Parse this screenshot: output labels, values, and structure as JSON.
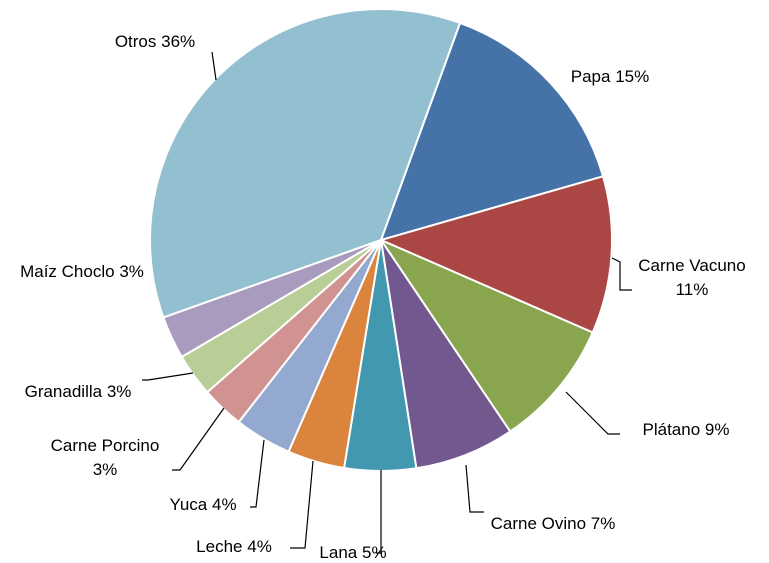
{
  "chart_data": {
    "type": "pie",
    "categories": [
      "Papa",
      "Carne Vacuno",
      "Plátano",
      "Carne Ovino",
      "Lana",
      "Leche",
      "Yuca",
      "Carne Porcino",
      "Granadilla",
      "Maíz Choclo",
      "Otros"
    ],
    "values": [
      15,
      11,
      9,
      7,
      5,
      4,
      4,
      3,
      3,
      3,
      36
    ],
    "value_labels": [
      "15%",
      "11%",
      "9%",
      "7%",
      "5%",
      "4%",
      "4%",
      "3%",
      "3%",
      "3%",
      "36%"
    ],
    "colors": [
      "#4572a7",
      "#aa4643",
      "#89a54e",
      "#71588f",
      "#4198af",
      "#db843d",
      "#93a9cf",
      "#d19392",
      "#b9cd96",
      "#a99bbd",
      "#93c0d1"
    ]
  }
}
